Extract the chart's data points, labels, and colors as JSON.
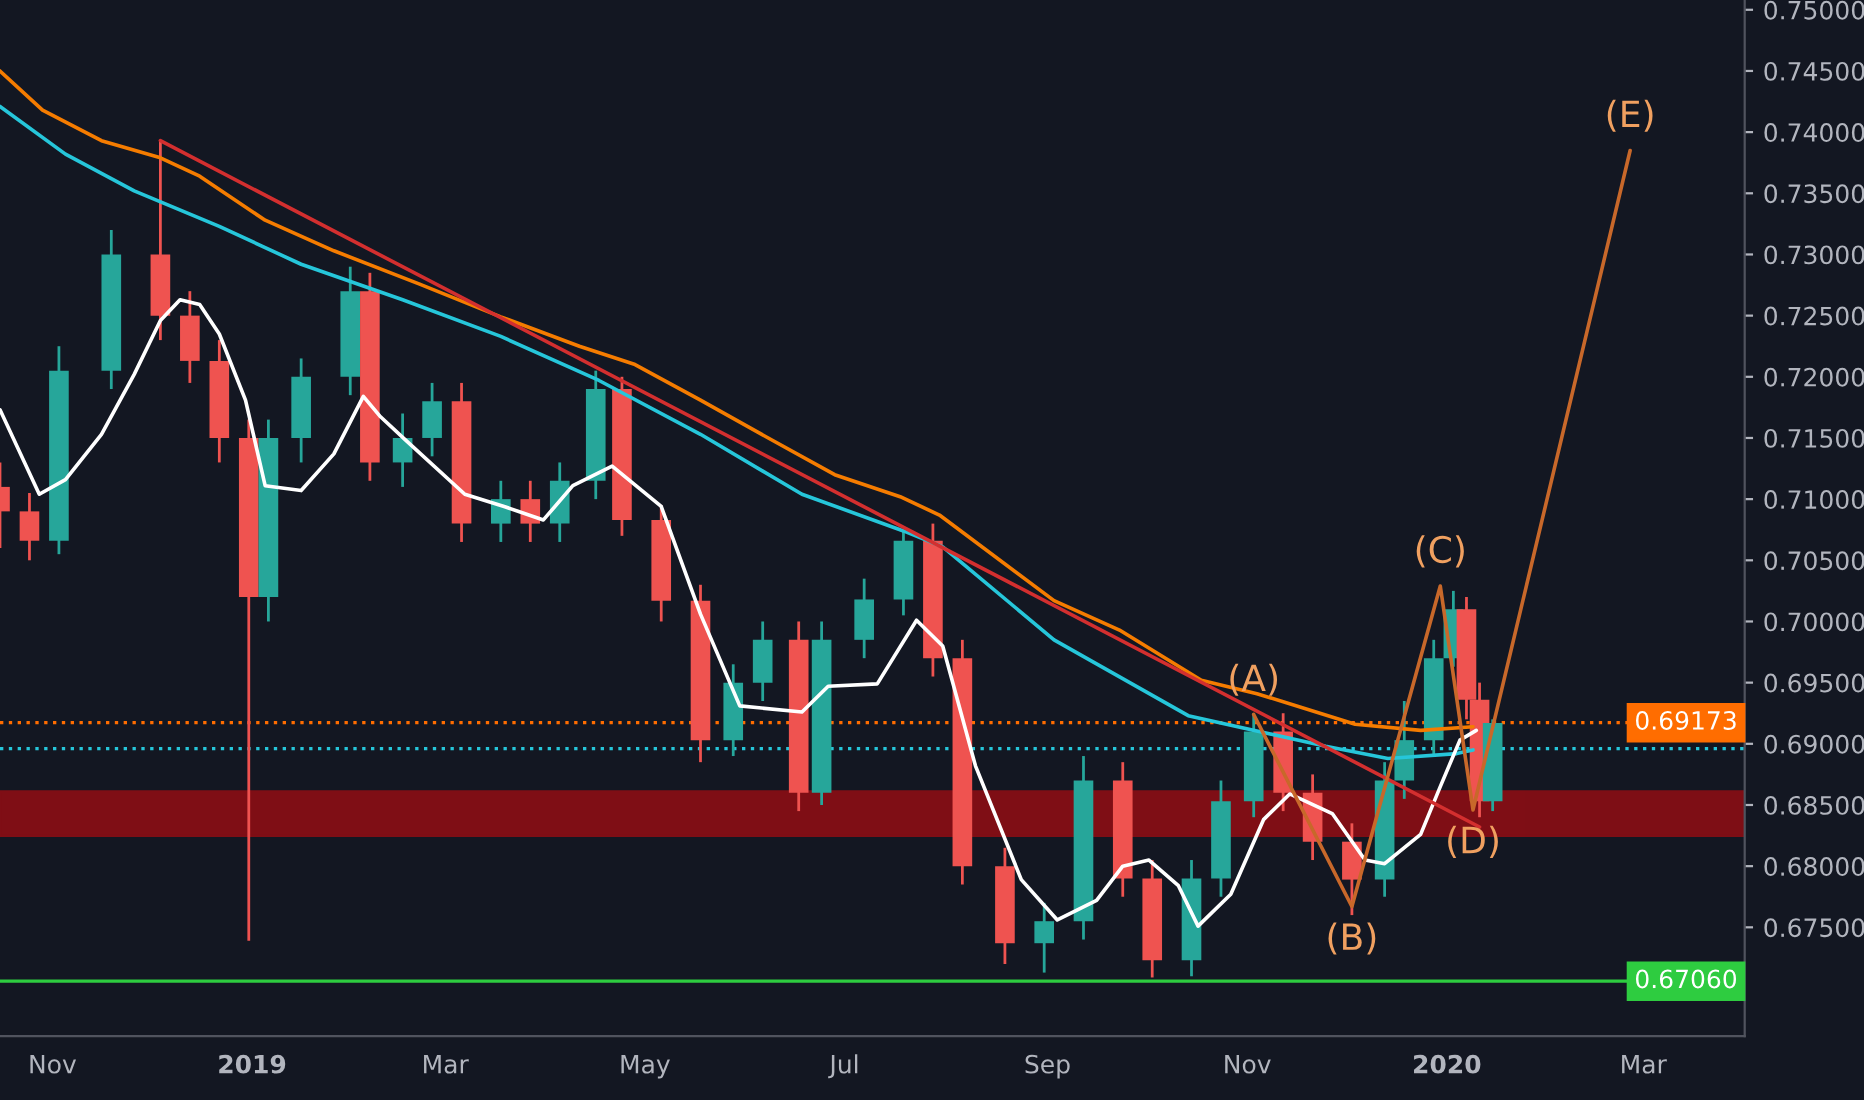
{
  "chart_data": {
    "type": "candlestick",
    "x": [
      "2018-10-16",
      "2018-10-25",
      "2018-11-03",
      "2018-11-19",
      "2018-12-04",
      "2018-12-13",
      "2018-12-22",
      "2018-12-31",
      "2019-01-06",
      "2019-01-16",
      "2019-01-31",
      "2019-02-06",
      "2019-02-16",
      "2019-02-25",
      "2019-03-06",
      "2019-03-18",
      "2019-03-27",
      "2019-04-05",
      "2019-04-16",
      "2019-04-24",
      "2019-05-06",
      "2019-05-18",
      "2019-05-28",
      "2019-06-06",
      "2019-06-17",
      "2019-06-24",
      "2019-07-07",
      "2019-07-19",
      "2019-07-28",
      "2019-08-06",
      "2019-08-19",
      "2019-08-31",
      "2019-09-12",
      "2019-09-24",
      "2019-10-03",
      "2019-10-15",
      "2019-10-24",
      "2019-11-03",
      "2019-11-12",
      "2019-11-21",
      "2019-12-03",
      "2019-12-13",
      "2019-12-19",
      "2019-12-28",
      "2020-01-03",
      "2020-01-07",
      "2020-01-11",
      "2020-01-15"
    ],
    "ohlc": [
      [
        0.711,
        0.713,
        0.706,
        0.709
      ],
      [
        0.709,
        0.7105,
        0.705,
        0.7066
      ],
      [
        0.7066,
        0.7225,
        0.7055,
        0.7205
      ],
      [
        0.7205,
        0.732,
        0.719,
        0.73
      ],
      [
        0.73,
        0.7393,
        0.723,
        0.725
      ],
      [
        0.725,
        0.727,
        0.7195,
        0.7213
      ],
      [
        0.7213,
        0.723,
        0.713,
        0.715
      ],
      [
        0.715,
        0.7165,
        0.6739,
        0.702
      ],
      [
        0.702,
        0.7165,
        0.7,
        0.715
      ],
      [
        0.715,
        0.7215,
        0.713,
        0.72
      ],
      [
        0.72,
        0.729,
        0.7185,
        0.727
      ],
      [
        0.727,
        0.7285,
        0.7115,
        0.713
      ],
      [
        0.713,
        0.717,
        0.711,
        0.715
      ],
      [
        0.715,
        0.7195,
        0.7135,
        0.718
      ],
      [
        0.718,
        0.7195,
        0.7065,
        0.708
      ],
      [
        0.708,
        0.7115,
        0.7065,
        0.71
      ],
      [
        0.71,
        0.7115,
        0.7065,
        0.708
      ],
      [
        0.708,
        0.713,
        0.7065,
        0.7115
      ],
      [
        0.7115,
        0.7205,
        0.71,
        0.719
      ],
      [
        0.719,
        0.72,
        0.707,
        0.7083
      ],
      [
        0.7083,
        0.7095,
        0.7,
        0.7017
      ],
      [
        0.7017,
        0.703,
        0.6885,
        0.6903
      ],
      [
        0.6903,
        0.6965,
        0.689,
        0.695
      ],
      [
        0.695,
        0.7,
        0.6935,
        0.6985
      ],
      [
        0.6985,
        0.7,
        0.6845,
        0.686
      ],
      [
        0.686,
        0.7,
        0.685,
        0.6985
      ],
      [
        0.6985,
        0.7035,
        0.697,
        0.7018
      ],
      [
        0.7018,
        0.7075,
        0.7005,
        0.7066
      ],
      [
        0.7066,
        0.708,
        0.6955,
        0.697
      ],
      [
        0.697,
        0.6985,
        0.6785,
        0.68
      ],
      [
        0.68,
        0.6815,
        0.672,
        0.6737
      ],
      [
        0.6737,
        0.677,
        0.6713,
        0.6755
      ],
      [
        0.6755,
        0.689,
        0.674,
        0.687
      ],
      [
        0.687,
        0.6885,
        0.6775,
        0.679
      ],
      [
        0.679,
        0.6805,
        0.6709,
        0.6723
      ],
      [
        0.6723,
        0.6805,
        0.671,
        0.679
      ],
      [
        0.679,
        0.687,
        0.6775,
        0.6853
      ],
      [
        0.6853,
        0.6925,
        0.684,
        0.691
      ],
      [
        0.691,
        0.6925,
        0.6845,
        0.686
      ],
      [
        0.686,
        0.6875,
        0.6805,
        0.682
      ],
      [
        0.682,
        0.6835,
        0.676,
        0.6789
      ],
      [
        0.6789,
        0.6885,
        0.6775,
        0.687
      ],
      [
        0.687,
        0.6935,
        0.6855,
        0.6903
      ],
      [
        0.6903,
        0.6985,
        0.689,
        0.697
      ],
      [
        0.697,
        0.7025,
        0.6963,
        0.701
      ],
      [
        0.701,
        0.702,
        0.692,
        0.6936
      ],
      [
        0.6936,
        0.695,
        0.684,
        0.6853
      ],
      [
        0.6853,
        0.692,
        0.6845,
        0.6917
      ]
    ],
    "colors": [
      "#ef5350",
      "#ef5350",
      "#26a69a",
      "#26a69a",
      "#ef5350",
      "#ef5350",
      "#ef5350",
      "#ef5350",
      "#26a69a",
      "#26a69a",
      "#26a69a",
      "#ef5350",
      "#26a69a",
      "#26a69a",
      "#ef5350",
      "#26a69a",
      "#ef5350",
      "#26a69a",
      "#26a69a",
      "#ef5350",
      "#ef5350",
      "#ef5350",
      "#26a69a",
      "#26a69a",
      "#ef5350",
      "#26a69a",
      "#26a69a",
      "#26a69a",
      "#ef5350",
      "#ef5350",
      "#ef5350",
      "#26a69a",
      "#26a69a",
      "#ef5350",
      "#ef5350",
      "#26a69a",
      "#26a69a",
      "#26a69a",
      "#ef5350",
      "#ef5350",
      "#ef5350",
      "#26a69a",
      "#26a69a",
      "#26a69a",
      "#26a69a",
      "#ef5350",
      "#ef5350",
      "#26a69a"
    ],
    "series": [
      {
        "type": "line",
        "color": "#f57c00",
        "x": [
          "2018-10-16",
          "2018-10-29",
          "2018-11-16",
          "2018-12-04",
          "2018-12-16",
          "2019-01-05",
          "2019-01-26",
          "2019-02-21",
          "2019-03-18",
          "2019-04-11",
          "2019-04-28",
          "2019-05-18",
          "2019-06-07",
          "2019-06-28",
          "2019-07-18",
          "2019-07-30",
          "2019-09-03",
          "2019-09-23",
          "2019-10-18",
          "2019-11-04",
          "2019-12-04",
          "2019-12-24",
          "2020-01-09"
        ],
        "values": [
          0.745,
          0.7418,
          0.7393,
          0.7379,
          0.7364,
          0.7328,
          0.7303,
          0.7276,
          0.7249,
          0.7225,
          0.721,
          0.7181,
          0.7151,
          0.712,
          0.7102,
          0.7087,
          0.7017,
          0.6993,
          0.6952,
          0.6941,
          0.6916,
          0.6911,
          0.6914
        ]
      },
      {
        "type": "line",
        "color": "#26c6da",
        "x": [
          "2018-10-16",
          "2018-11-05",
          "2018-11-26",
          "2018-12-22",
          "2019-01-16",
          "2019-02-16",
          "2019-03-18",
          "2019-04-17",
          "2019-05-18",
          "2019-06-18",
          "2019-07-19",
          "2019-07-31",
          "2019-09-03",
          "2019-10-14",
          "2019-11-25",
          "2019-12-14",
          "2020-01-04",
          "2020-01-09"
        ],
        "values": [
          0.7421,
          0.7382,
          0.7352,
          0.7323,
          0.7292,
          0.7263,
          0.7233,
          0.7197,
          0.7153,
          0.7104,
          0.7074,
          0.7061,
          0.6985,
          0.6923,
          0.6898,
          0.6888,
          0.6892,
          0.6895
        ]
      },
      {
        "type": "line",
        "color": "#ffffff",
        "x": [
          "2018-10-16",
          "2018-10-28",
          "2018-11-05",
          "2018-11-16",
          "2018-11-26",
          "2018-12-04",
          "2018-12-10",
          "2018-12-16",
          "2018-12-22",
          "2018-12-30",
          "2019-01-05",
          "2019-01-16",
          "2019-01-26",
          "2019-02-04",
          "2019-02-09",
          "2019-02-17",
          "2019-03-07",
          "2019-03-19",
          "2019-03-31",
          "2019-04-09",
          "2019-04-21",
          "2019-05-06",
          "2019-05-18",
          "2019-05-30",
          "2019-06-18",
          "2019-06-26",
          "2019-07-11",
          "2019-07-23",
          "2019-07-31",
          "2019-08-10",
          "2019-08-24",
          "2019-09-04",
          "2019-09-16",
          "2019-09-24",
          "2019-10-02",
          "2019-10-11",
          "2019-10-17",
          "2019-10-27",
          "2019-11-06",
          "2019-11-14",
          "2019-11-27",
          "2019-12-07",
          "2019-12-13",
          "2019-12-24",
          "2019-12-30",
          "2020-01-05",
          "2020-01-10"
        ],
        "values": [
          0.7173,
          0.7104,
          0.7116,
          0.7153,
          0.7202,
          0.7246,
          0.7263,
          0.7259,
          0.7235,
          0.7181,
          0.7111,
          0.7107,
          0.7137,
          0.7184,
          0.7168,
          0.7148,
          0.7104,
          0.7094,
          0.7083,
          0.7111,
          0.7127,
          0.7094,
          0.7006,
          0.6931,
          0.6926,
          0.6947,
          0.6949,
          0.7001,
          0.698,
          0.6882,
          0.6789,
          0.6756,
          0.6772,
          0.68,
          0.6805,
          0.6784,
          0.6751,
          0.6777,
          0.6838,
          0.6859,
          0.6843,
          0.6805,
          0.6802,
          0.6826,
          0.6865,
          0.6903,
          0.6911
        ]
      },
      {
        "type": "line",
        "color": "#d32f2f",
        "x": [
          "2018-12-04",
          "2020-01-11"
        ],
        "values": [
          0.7393,
          0.6832
        ]
      },
      {
        "type": "line",
        "color": "#c8682a",
        "x": [
          "2019-11-03",
          "2019-12-03",
          "2019-12-30",
          "2020-01-09",
          "2020-02-26"
        ],
        "values": [
          0.6924,
          0.6767,
          0.7029,
          0.6846,
          0.7385
        ]
      }
    ],
    "annotations": [
      {
        "text": "(A)",
        "x": "2019-11-03",
        "y": 0.6924
      },
      {
        "text": "(B)",
        "x": "2019-12-03",
        "y": 0.6767
      },
      {
        "text": "(C)",
        "x": "2019-12-30",
        "y": 0.7029
      },
      {
        "text": "(D)",
        "x": "2020-01-09",
        "y": 0.6846
      },
      {
        "text": "(E)",
        "x": "2020-02-26",
        "y": 0.7385
      }
    ],
    "ref_lines": [
      {
        "axis": "y",
        "value": 0.69173,
        "label": "0.69173",
        "color": "#ff6d00",
        "line_style": "dotted"
      },
      {
        "axis": "y",
        "value": 0.6896,
        "color": "#26c6da",
        "line_style": "dotted"
      },
      {
        "axis": "y",
        "value": 0.6706,
        "label": "0.67060",
        "color": "#2ecc40",
        "line_style": "solid"
      }
    ],
    "bands": [
      {
        "axis": "y",
        "from": 0.6825,
        "to": 0.6861,
        "color": "#8b0e14"
      }
    ],
    "xlim": [
      "2018-10-16",
      "2020-04-01"
    ],
    "xticks": [
      {
        "value": "2018-11-01",
        "label": "Nov"
      },
      {
        "value": "2019-01-01",
        "label": "2019"
      },
      {
        "value": "2019-03-01",
        "label": "Mar"
      },
      {
        "value": "2019-05-01",
        "label": "May"
      },
      {
        "value": "2019-07-01",
        "label": "Jul"
      },
      {
        "value": "2019-09-01",
        "label": "Sep"
      },
      {
        "value": "2019-11-01",
        "label": "Nov"
      },
      {
        "value": "2020-01-01",
        "label": "2020"
      },
      {
        "value": "2020-03-01",
        "label": "Mar"
      }
    ],
    "ylim": [
      0.6661,
      0.7508
    ],
    "yticks": [
      {
        "value": 0.675,
        "label": "0.67500"
      },
      {
        "value": 0.68,
        "label": "0.68000"
      },
      {
        "value": 0.685,
        "label": "0.68500"
      },
      {
        "value": 0.69,
        "label": "0.69000"
      },
      {
        "value": 0.695,
        "label": "0.69500"
      },
      {
        "value": 0.7,
        "label": "0.70000"
      },
      {
        "value": 0.705,
        "label": "0.70500"
      },
      {
        "value": 0.71,
        "label": "0.71000"
      },
      {
        "value": 0.715,
        "label": "0.71500"
      },
      {
        "value": 0.72,
        "label": "0.72000"
      },
      {
        "value": 0.725,
        "label": "0.72500"
      },
      {
        "value": 0.73,
        "label": "0.73000"
      },
      {
        "value": 0.735,
        "label": "0.73500"
      },
      {
        "value": 0.74,
        "label": "0.74000"
      },
      {
        "value": 0.745,
        "label": "0.74500"
      },
      {
        "value": 0.75,
        "label": "0.75000"
      }
    ]
  }
}
